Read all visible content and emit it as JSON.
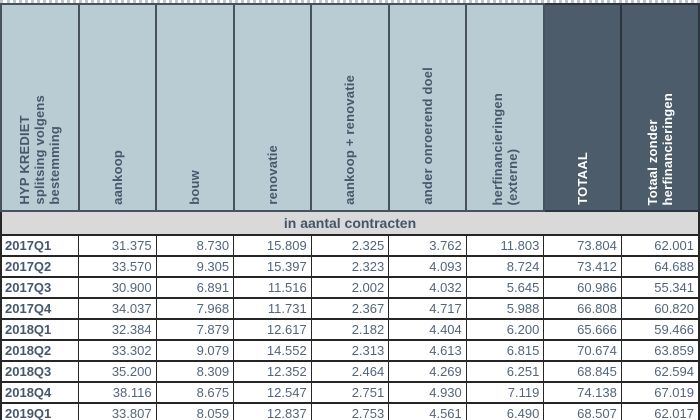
{
  "table": {
    "corner_label": "HYP KREDIET\nsplitsing volgens\nbestemming",
    "header_columns": [
      "aankoop",
      "bouw",
      "renovatie",
      "aankoop + renovatie",
      "ander onroerend doel",
      "herfinancieringen\n(externe)",
      "TOTAAL",
      "Totaal zonder\nherfinancieringen"
    ],
    "banner": "in aantal contracten",
    "rows": [
      {
        "quarter": "2017Q1",
        "values": [
          "31.375",
          "8.730",
          "15.809",
          "2.325",
          "3.762",
          "11.803",
          "73.804",
          "62.001"
        ]
      },
      {
        "quarter": "2017Q2",
        "values": [
          "33.570",
          "9.305",
          "15.397",
          "2.323",
          "4.093",
          "8.724",
          "73.412",
          "64.688"
        ]
      },
      {
        "quarter": "2017Q3",
        "values": [
          "30.900",
          "6.891",
          "11.516",
          "2.002",
          "4.032",
          "5.645",
          "60.986",
          "55.341"
        ]
      },
      {
        "quarter": "2017Q4",
        "values": [
          "34.037",
          "7.968",
          "11.731",
          "2.367",
          "4.717",
          "5.988",
          "66.808",
          "60.820"
        ]
      },
      {
        "quarter": "2018Q1",
        "values": [
          "32.384",
          "7.879",
          "12.617",
          "2.182",
          "4.404",
          "6.200",
          "65.666",
          "59.466"
        ]
      },
      {
        "quarter": "2018Q2",
        "values": [
          "33.302",
          "9.079",
          "14.552",
          "2.313",
          "4.613",
          "6.815",
          "70.674",
          "63.859"
        ]
      },
      {
        "quarter": "2018Q3",
        "values": [
          "35.200",
          "8.309",
          "12.352",
          "2.464",
          "4.269",
          "6.251",
          "68.845",
          "62.594"
        ]
      },
      {
        "quarter": "2018Q4",
        "values": [
          "38.116",
          "8.675",
          "12.547",
          "2.751",
          "4.930",
          "7.119",
          "74.138",
          "67.019"
        ]
      },
      {
        "quarter": "2019Q1",
        "values": [
          "33.807",
          "8.059",
          "12.837",
          "2.753",
          "4.561",
          "6.490",
          "68.507",
          "62.017"
        ]
      }
    ]
  },
  "colors": {
    "header_bg": "#b9ccd4",
    "header_dark_bg": "#4c5c6a",
    "header_text": "#47586b",
    "header_dark_text": "#ffffff",
    "banner_bg": "#d9d9d9",
    "banner_text": "#44556a",
    "number_text": "#53657d",
    "quarter_text": "#46576d",
    "grid": "#262626"
  },
  "chart_data": {
    "type": "table",
    "title": "HYP KREDIET splitsing volgens bestemming",
    "subtitle": "in aantal contracten",
    "columns": [
      "aankoop",
      "bouw",
      "renovatie",
      "aankoop + renovatie",
      "ander onroerend doel",
      "herfinancieringen (externe)",
      "TOTAAL",
      "Totaal zonder herfinancieringen"
    ],
    "row_labels": [
      "2017Q1",
      "2017Q2",
      "2017Q3",
      "2017Q4",
      "2018Q1",
      "2018Q2",
      "2018Q3",
      "2018Q4",
      "2019Q1"
    ],
    "rows": [
      [
        31375,
        8730,
        15809,
        2325,
        3762,
        11803,
        73804,
        62001
      ],
      [
        33570,
        9305,
        15397,
        2323,
        4093,
        8724,
        73412,
        64688
      ],
      [
        30900,
        6891,
        11516,
        2002,
        4032,
        5645,
        60986,
        55341
      ],
      [
        34037,
        7968,
        11731,
        2367,
        4717,
        5988,
        66808,
        60820
      ],
      [
        32384,
        7879,
        12617,
        2182,
        4404,
        6200,
        65666,
        59466
      ],
      [
        33302,
        9079,
        14552,
        2313,
        4613,
        6815,
        70674,
        63859
      ],
      [
        35200,
        8309,
        12352,
        2464,
        4269,
        6251,
        68845,
        62594
      ],
      [
        38116,
        8675,
        12547,
        2751,
        4930,
        7119,
        74138,
        67019
      ],
      [
        33807,
        8059,
        12837,
        2753,
        4561,
        6490,
        68507,
        62017
      ]
    ]
  }
}
